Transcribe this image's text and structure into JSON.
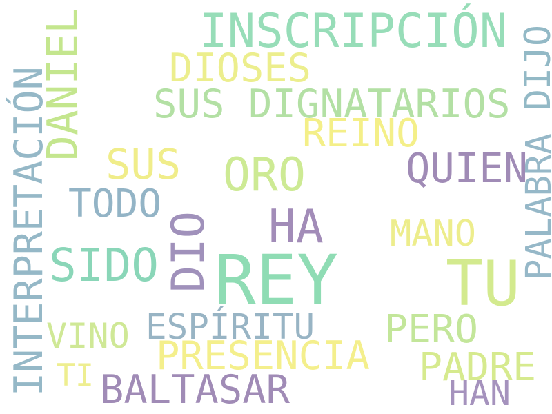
{
  "palette": {
    "green": "#8fdcb4",
    "teal": "#86cfc0",
    "lime": "#c5e889",
    "yellow": "#f1ee86",
    "blue": "#8fb2c6",
    "purple": "#9f86b6",
    "background": "#ffffff"
  },
  "words": [
    {
      "id": "word-rey",
      "text": "REY",
      "color": "#8fdcb4"
    },
    {
      "id": "word-tu",
      "text": "TU",
      "color": "#d3ea8e"
    },
    {
      "id": "word-inscripcion",
      "text": "INSCRIPCIÓN",
      "color": "#97ddb8"
    },
    {
      "id": "word-interpretacion",
      "text": "INTERPRETACIÓN",
      "color": "#95b8c7"
    },
    {
      "id": "word-sus-dignatarios",
      "text": "SUS DIGNATARIOS",
      "color": "#b3e0a4"
    },
    {
      "id": "word-presencia",
      "text": "PRESENCIA",
      "color": "#f4ef8c"
    },
    {
      "id": "word-baltasar",
      "text": "BALTASAR",
      "color": "#a08bb6"
    },
    {
      "id": "word-daniel",
      "text": "DANIEL",
      "color": "#c4e68e"
    },
    {
      "id": "word-dio",
      "text": "DIO",
      "color": "#a091bb"
    },
    {
      "id": "word-sido",
      "text": "SIDO",
      "color": "#8ad6b8"
    },
    {
      "id": "word-oro",
      "text": "ORO",
      "color": "#cdea94"
    },
    {
      "id": "word-ha",
      "text": "HA",
      "color": "#a28cb8"
    },
    {
      "id": "word-dioses",
      "text": "DIOSES",
      "color": "#ecee8d"
    },
    {
      "id": "word-sus",
      "text": "SUS",
      "color": "#f0ed8a"
    },
    {
      "id": "word-quien",
      "text": "QUIEN",
      "color": "#a08bb6"
    },
    {
      "id": "word-reino",
      "text": "REINO",
      "color": "#f4ef88"
    },
    {
      "id": "word-todo",
      "text": "TODO",
      "color": "#93b4c6"
    },
    {
      "id": "word-palabra",
      "text": "PALABRA",
      "color": "#96b8c8"
    },
    {
      "id": "word-dijo",
      "text": "DIJO",
      "color": "#93b9c6"
    },
    {
      "id": "word-mano",
      "text": "MANO",
      "color": "#eded8c"
    },
    {
      "id": "word-espiritu",
      "text": "ESPÍRITU",
      "color": "#98b4c4"
    },
    {
      "id": "word-pero",
      "text": "PERO",
      "color": "#c3e69a"
    },
    {
      "id": "word-padre",
      "text": "PADRE",
      "color": "#d6ea8e"
    },
    {
      "id": "word-vino",
      "text": "VINO",
      "color": "#cfe896"
    },
    {
      "id": "word-ti",
      "text": "TI",
      "color": "#eeee90"
    },
    {
      "id": "word-han",
      "text": "HAN",
      "color": "#a592bd"
    }
  ]
}
